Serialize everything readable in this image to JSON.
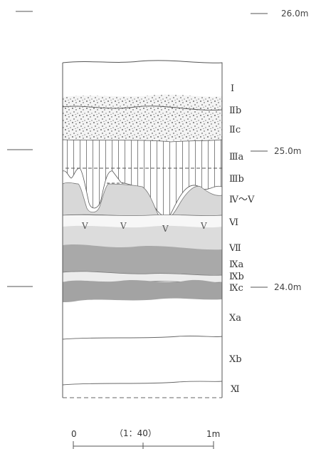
{
  "figure": {
    "layers": [
      {
        "id": "I",
        "label": "Ⅰ"
      },
      {
        "id": "IIb",
        "label": "Ⅱb"
      },
      {
        "id": "IIc",
        "label": "Ⅱc"
      },
      {
        "id": "IIIa",
        "label": "Ⅲa"
      },
      {
        "id": "IIIb",
        "label": "Ⅲb"
      },
      {
        "id": "IV-V",
        "label": "Ⅳ～Ⅴ"
      },
      {
        "id": "VI",
        "label": "Ⅵ"
      },
      {
        "id": "VII",
        "label": "Ⅶ"
      },
      {
        "id": "IXa",
        "label": "Ⅸa"
      },
      {
        "id": "IXb",
        "label": "Ⅸb"
      },
      {
        "id": "IXc",
        "label": "Ⅸc"
      },
      {
        "id": "Xa",
        "label": "Ⅹa"
      },
      {
        "id": "Xb",
        "label": "Ⅹb"
      },
      {
        "id": "XI",
        "label": "Ⅺ"
      }
    ],
    "elevations": [
      {
        "id": "top",
        "label": "26.0m"
      },
      {
        "id": "mid",
        "label": "25.0m"
      },
      {
        "id": "low",
        "label": "24.0m"
      }
    ],
    "scale": {
      "start": "0",
      "ratio": "（1：40）",
      "end": "1m"
    },
    "colors": {
      "ink": "#555555",
      "hatch": "#777777",
      "stipple": "#444444",
      "light_gray": "#dcdcdc",
      "mid_gray": "#c4c4c4",
      "dark_gray": "#a7a7a7"
    }
  }
}
